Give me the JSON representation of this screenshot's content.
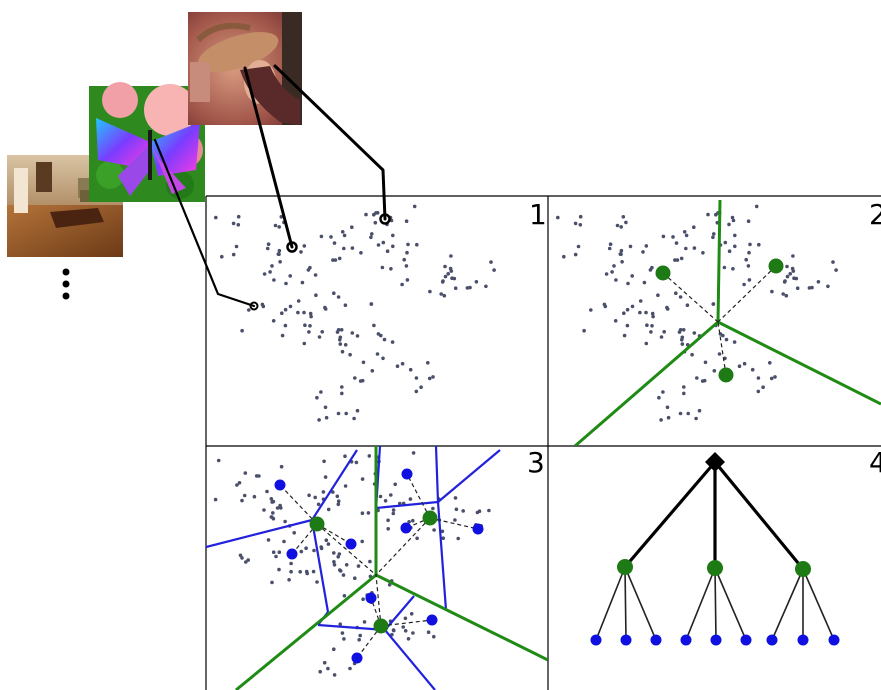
{
  "thumbnails": [
    {
      "name": "woman-with-hat-photo"
    },
    {
      "name": "butterfly-on-flowers-photo"
    },
    {
      "name": "living-room-photo"
    }
  ],
  "panels": [
    {
      "label": "1"
    },
    {
      "label": "2"
    },
    {
      "label": "3"
    },
    {
      "label": "4"
    }
  ],
  "colors": {
    "descriptor_point": "#4a4f6a",
    "center_level1": "#1e7a14",
    "center_level2": "#1010e0",
    "boundary_level1": "#1f8a14",
    "boundary_level2": "#2222dd",
    "tree_root": "#000000",
    "line": "#000000"
  }
}
